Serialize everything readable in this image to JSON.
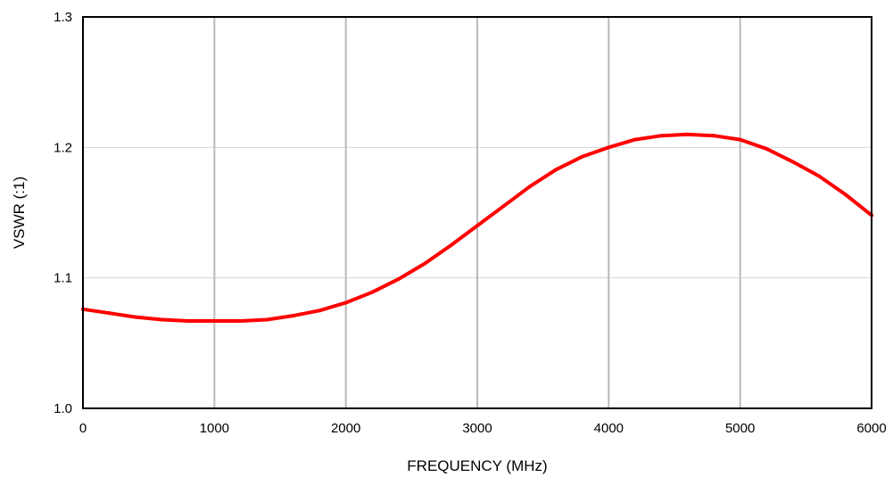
{
  "chart_data": {
    "type": "line",
    "title": "",
    "xlabel": "FREQUENCY (MHz)",
    "ylabel": "VSWR (:1)",
    "xlim": [
      0,
      6000
    ],
    "ylim": [
      1.0,
      1.3
    ],
    "x_ticks": [
      "0",
      "1000",
      "2000",
      "3000",
      "4000",
      "5000",
      "6000"
    ],
    "y_ticks": [
      "1.0",
      "1.1",
      "1.2",
      "1.3"
    ],
    "grid": {
      "vertical": "gray",
      "horizontal": "light"
    },
    "legend": "none",
    "series": [
      {
        "color": "#ff0000",
        "x": [
          0,
          200,
          400,
          600,
          800,
          1000,
          1200,
          1400,
          1600,
          1800,
          2000,
          2200,
          2400,
          2600,
          2800,
          3000,
          3200,
          3400,
          3600,
          3800,
          4000,
          4200,
          4400,
          4600,
          4800,
          5000,
          5200,
          5400,
          5600,
          5800,
          6000
        ],
        "y": [
          1.076,
          1.073,
          1.07,
          1.068,
          1.067,
          1.067,
          1.067,
          1.068,
          1.071,
          1.075,
          1.081,
          1.089,
          1.099,
          1.111,
          1.125,
          1.14,
          1.155,
          1.17,
          1.183,
          1.193,
          1.2,
          1.206,
          1.209,
          1.21,
          1.209,
          1.206,
          1.199,
          1.189,
          1.178,
          1.164,
          1.148
        ]
      }
    ]
  }
}
